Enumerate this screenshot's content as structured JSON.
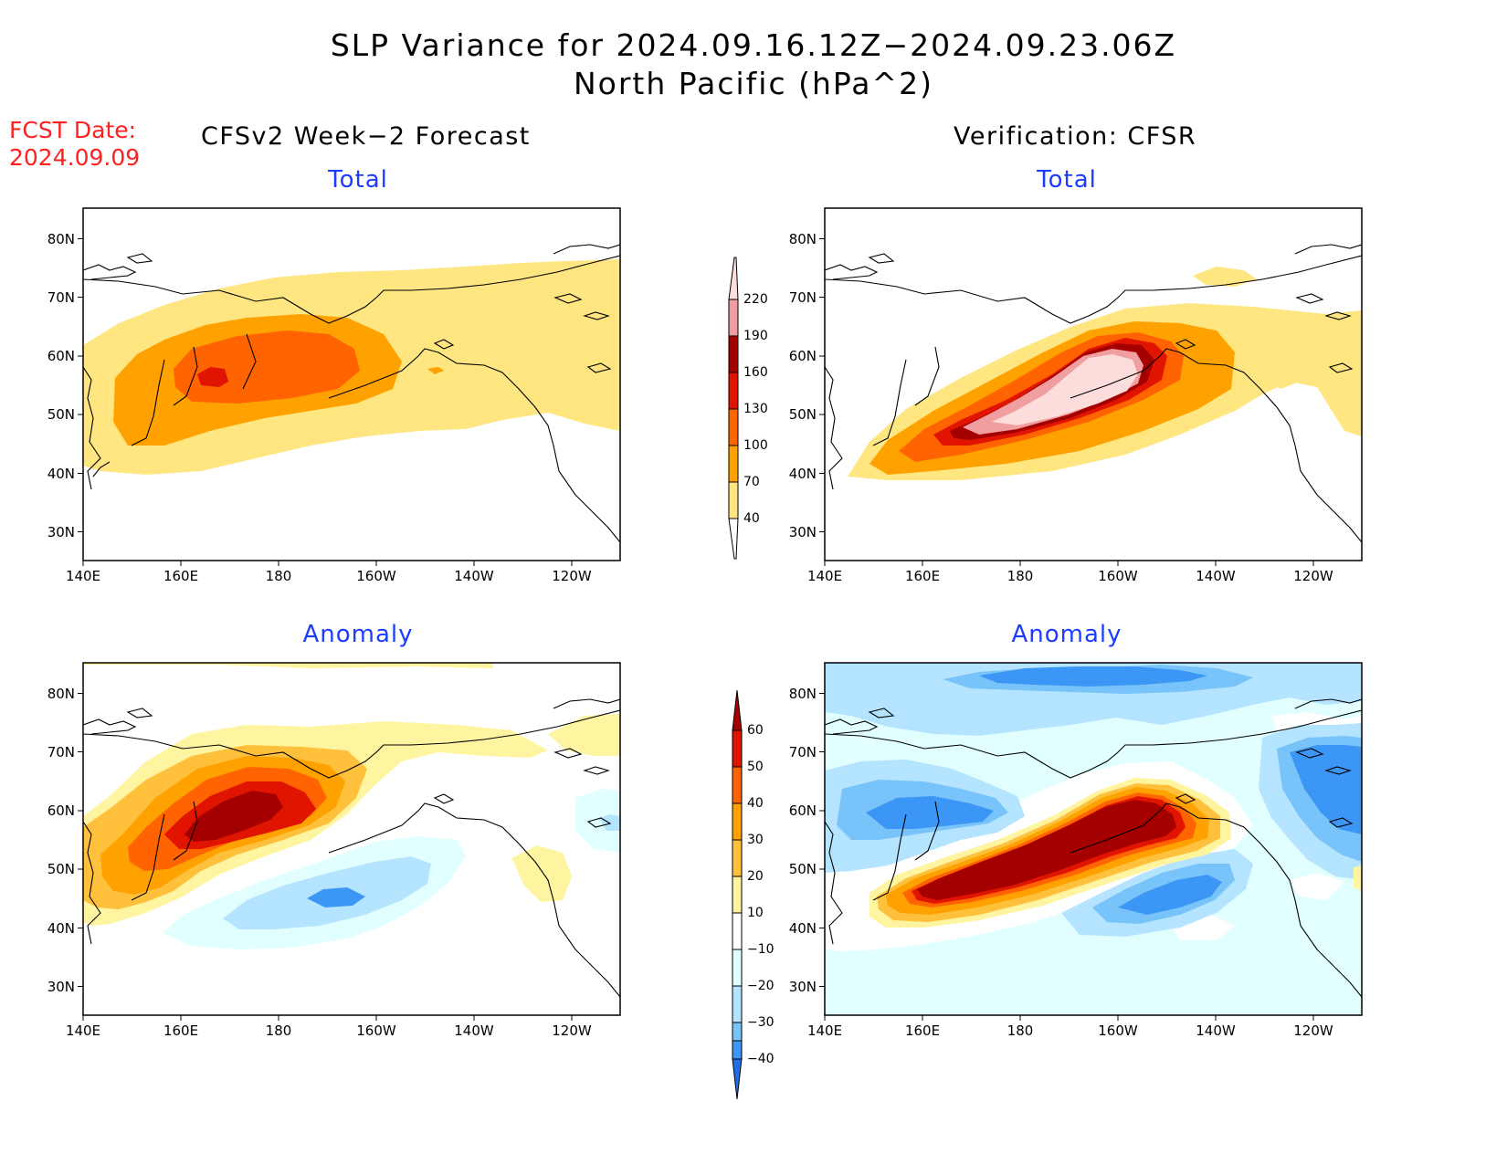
{
  "title": {
    "line1": "SLP Variance for 2024.09.16.12Z−2024.09.23.06Z",
    "line2": "North Pacific (hPa^2)"
  },
  "fcst_date": {
    "label": "FCST Date:",
    "value": "2024.09.09"
  },
  "columns": {
    "left": "CFSv2 Week−2 Forecast",
    "right": "Verification: CFSR"
  },
  "panel_titles": {
    "forecast_total": "Total",
    "verification_total": "Total",
    "forecast_anomaly": "Anomaly",
    "verification_anomaly": "Anomaly"
  },
  "map_axes": {
    "lat_labels": [
      "80N",
      "70N",
      "60N",
      "50N",
      "40N",
      "30N"
    ],
    "lon_labels": [
      "140E",
      "160E",
      "180",
      "160W",
      "140W",
      "120W"
    ]
  },
  "colorbars": {
    "total": {
      "levels": [
        "40",
        "70",
        "100",
        "130",
        "160",
        "190",
        "220"
      ],
      "colors": [
        "#ffe680",
        "#ffa200",
        "#ff6400",
        "#e11400",
        "#a50000",
        "#f09ea0",
        "#fddcdc"
      ]
    },
    "anomaly": {
      "levels": [
        "60",
        "50",
        "40",
        "30",
        "20",
        "10",
        "−10",
        "−20",
        "−30",
        "−40"
      ],
      "colors": [
        "#a50000",
        "#e11400",
        "#ff6400",
        "#ffa200",
        "#ffc03c",
        "#fff5a0",
        "#ffffff",
        "#e1ffff",
        "#b4e4ff",
        "#78c4fa",
        "#3c96f5",
        "#1e6ee6"
      ]
    }
  }
}
